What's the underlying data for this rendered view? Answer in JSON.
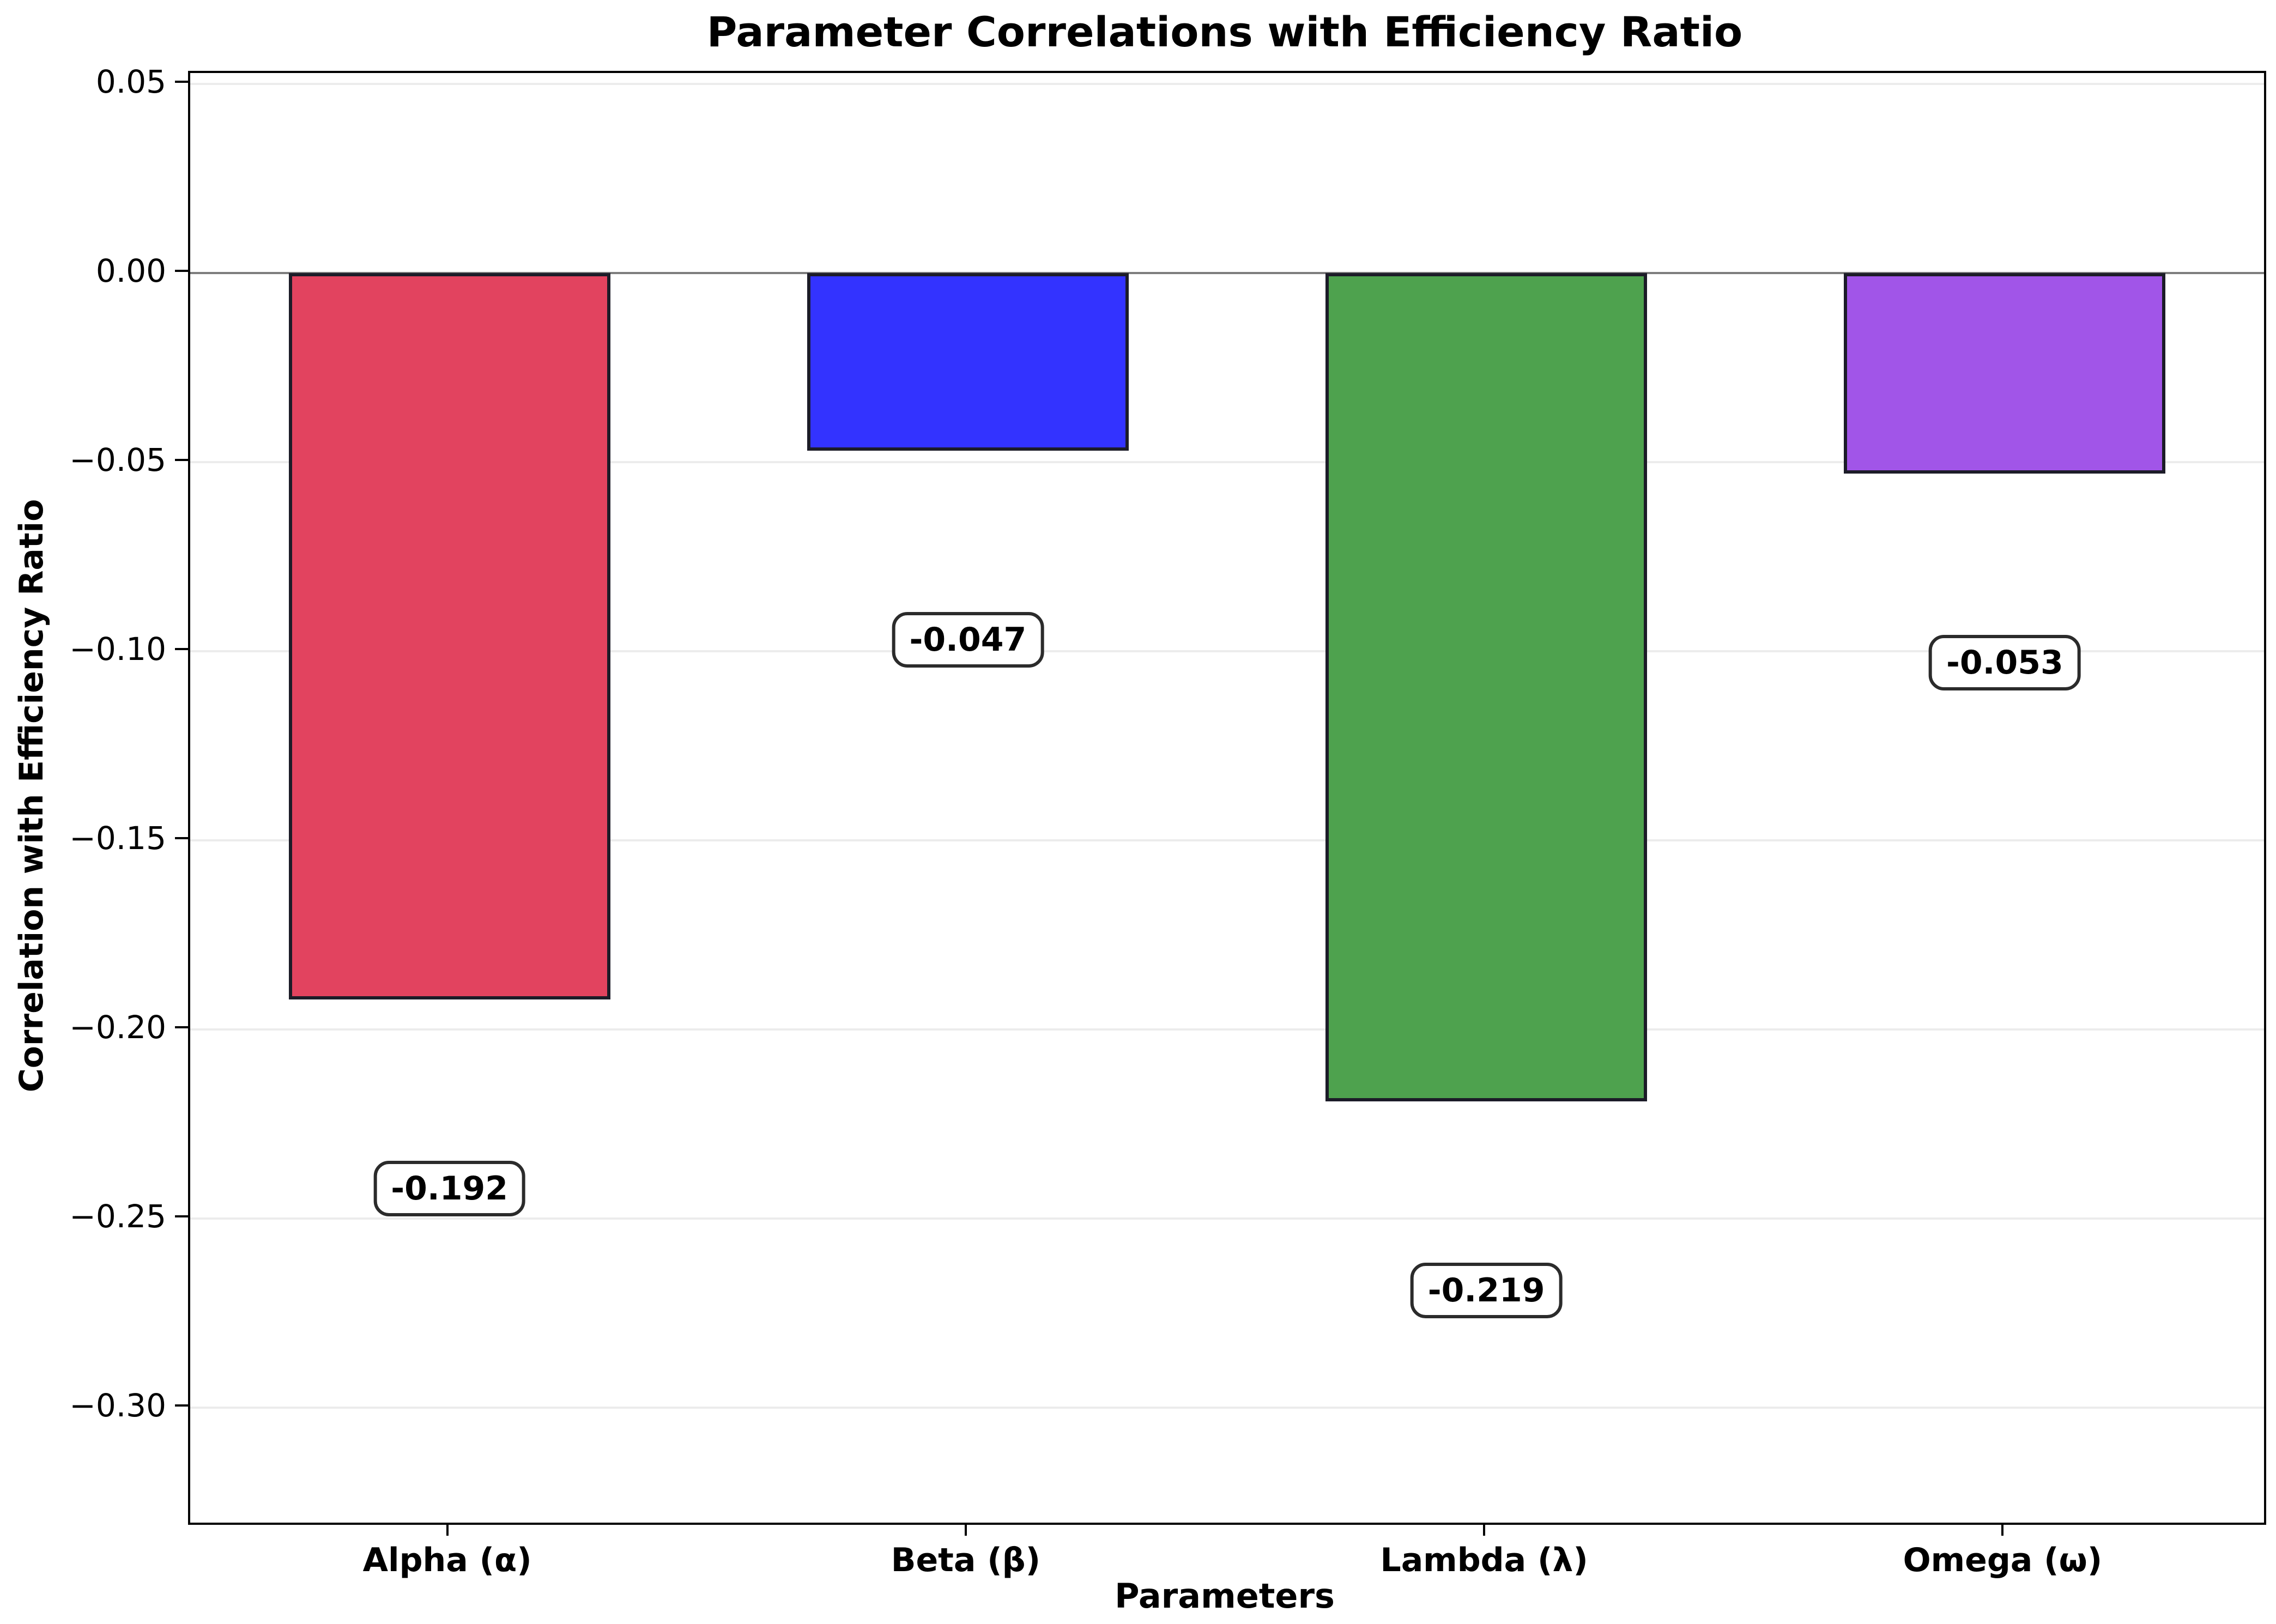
{
  "chart_data": {
    "type": "bar",
    "title": "Parameter Correlations with Efficiency Ratio",
    "xlabel": "Parameters",
    "ylabel": "Correlation with Efficiency Ratio",
    "categories": [
      "Alpha (α)",
      "Beta (β)",
      "Lambda (λ)",
      "Omega (ω)"
    ],
    "values": [
      -0.192,
      -0.047,
      -0.219,
      -0.053
    ],
    "value_labels": [
      "-0.192",
      "-0.047",
      "-0.219",
      "-0.053"
    ],
    "bar_colors": [
      "#e2435f",
      "#3333ff",
      "#4ea24e",
      "#a155e8"
    ],
    "bar_edge_color": "#1c1c28",
    "ylim": [
      -0.3304,
      0.0529
    ],
    "yticks": [
      0.05,
      0.0,
      -0.05,
      -0.1,
      -0.15,
      -0.2,
      -0.25,
      -0.3
    ],
    "ytick_labels": [
      "0.05",
      "0.00",
      "−0.05",
      "−0.10",
      "−0.15",
      "−0.20",
      "−0.25",
      "−0.30"
    ],
    "grid": true,
    "zero_line": true,
    "legend": "none",
    "bar_width_fraction": 0.62,
    "value_label_offset": 0.05
  }
}
